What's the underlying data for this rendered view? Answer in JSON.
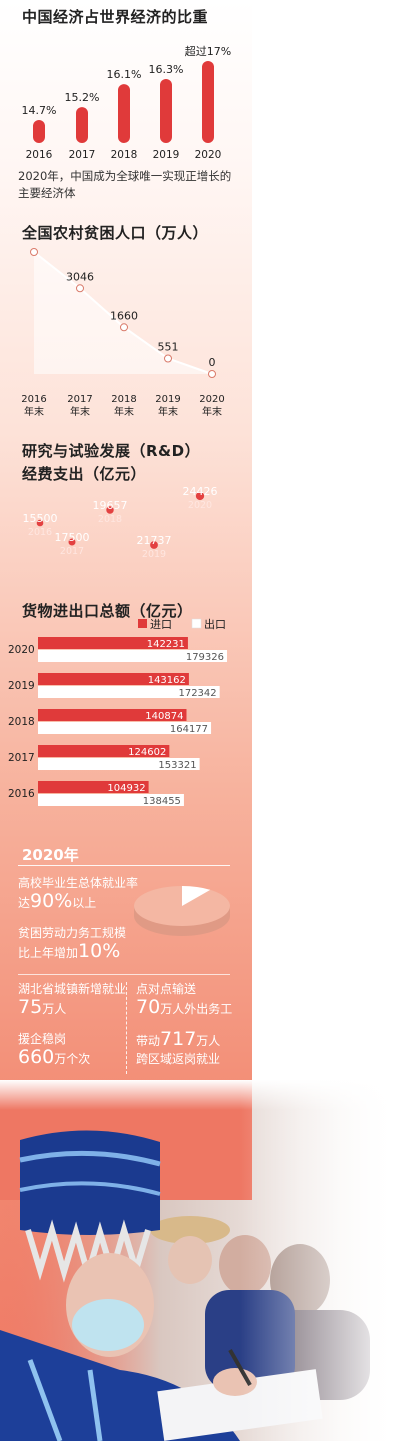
{
  "sections": {
    "gdp_share_title": "中国经济占世界经济的比重",
    "gdp_note_line1": "2020年，中国成为全球唯一实现正增长的",
    "gdp_note_line2": "主要经济体",
    "poverty_title": "全国农村贫困人口（万人）",
    "rd_title_line1": "研究与试验发展（R&D）",
    "rd_title_line2": "经费支出（亿元）",
    "trade_title": "货物进出口总额（亿元）",
    "legend_import": "进口",
    "legend_export": "出口"
  },
  "chart_data": [
    {
      "type": "bar",
      "title": "中国经济占世界经济的比重",
      "categories": [
        "2016",
        "2017",
        "2018",
        "2019",
        "2020"
      ],
      "labels": [
        "14.7%",
        "15.2%",
        "16.1%",
        "16.3%",
        "超过17%"
      ],
      "values": [
        14.7,
        15.2,
        16.1,
        16.3,
        17.0
      ],
      "colors": {
        "bar": "#e03a3a"
      }
    },
    {
      "type": "line",
      "title": "全国农村贫困人口（万人）",
      "categories": [
        "2016",
        "2017",
        "2018",
        "2019",
        "2020"
      ],
      "category_suffix": "年末",
      "values": [
        4335,
        3046,
        1660,
        551,
        0
      ],
      "ylim": [
        0,
        4335
      ]
    },
    {
      "type": "scatter",
      "subtype": "bubble",
      "title": "研究与试验发展（R&D）经费支出（亿元）",
      "categories": [
        "2016",
        "2017",
        "2018",
        "2019",
        "2020"
      ],
      "values": [
        15500,
        17500,
        19657,
        21737,
        24426
      ],
      "colors": {
        "bubble": "#e34141"
      }
    },
    {
      "type": "bar",
      "orientation": "horizontal",
      "title": "货物进出口总额（亿元）",
      "categories": [
        "2020",
        "2019",
        "2018",
        "2017",
        "2016"
      ],
      "series": [
        {
          "name": "进口",
          "values": [
            142231,
            143162,
            140874,
            124602,
            104932
          ]
        },
        {
          "name": "出口",
          "values": [
            179326,
            172342,
            164177,
            153321,
            138455
          ]
        }
      ],
      "xlim": [
        0,
        185000
      ],
      "colors": {
        "import": "#e03a3a",
        "export": "#ffffff"
      }
    }
  ],
  "summary": {
    "year_title": "2020年",
    "grad_pre": "高校毕业生总体就业率",
    "grad_a": "达",
    "grad_big": "90%",
    "grad_b": "以上",
    "grad_share": 0.9,
    "labor_pre": "贫困劳动力务工规模",
    "labor_a": "比上年增加",
    "labor_big": "10%",
    "hubei_pre": "湖北省城镇新增就业",
    "hubei_big": "75",
    "hubei_unit": "万人",
    "ptp_pre": "点对点输送",
    "ptp_big": "70",
    "ptp_unit": "万人外出务工",
    "aid_pre": "援企稳岗",
    "aid_big": "660",
    "aid_unit": "万个次",
    "drive_a": "带动",
    "drive_big": "717",
    "drive_unit": "万人",
    "drive_post": "跨区域返岗就业"
  }
}
